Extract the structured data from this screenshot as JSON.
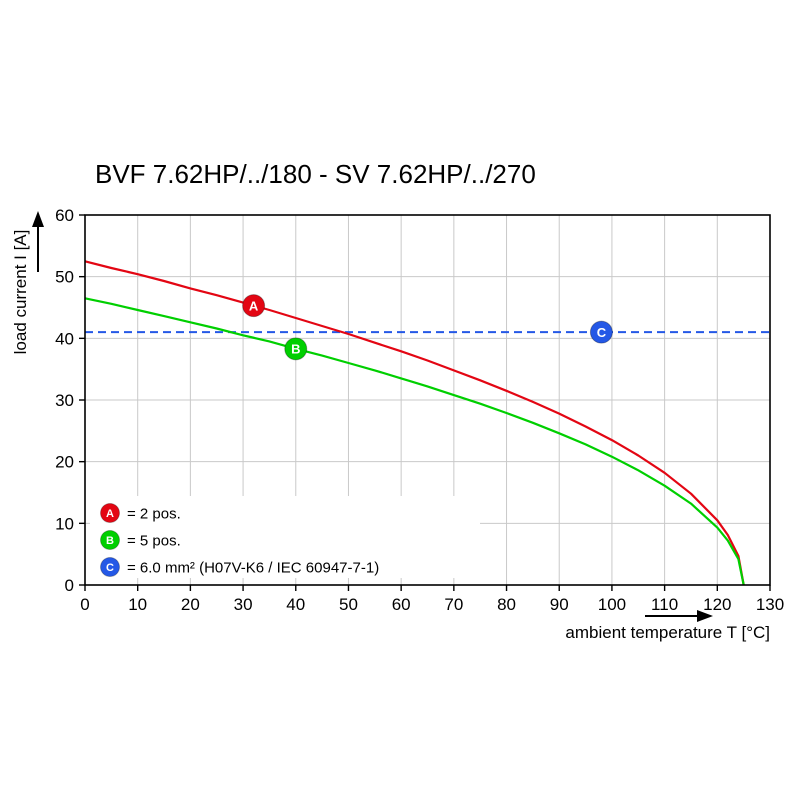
{
  "title": "BVF 7.62HP/../180 - SV 7.62HP/../270",
  "chart_data": {
    "type": "line",
    "title": "BVF 7.62HP/../180 - SV 7.62HP/../270",
    "xlabel": "ambient temperature T [°C]",
    "ylabel": "load current I [A]",
    "xlim": [
      0,
      130
    ],
    "ylim": [
      0,
      60
    ],
    "x_ticks": [
      0,
      10,
      20,
      30,
      40,
      50,
      60,
      70,
      80,
      90,
      100,
      110,
      120,
      130
    ],
    "y_ticks": [
      0,
      10,
      20,
      30,
      40,
      50,
      60
    ],
    "grid": true,
    "series": [
      {
        "name": "A",
        "label": "= 2 pos.",
        "color": "#e30613",
        "points": [
          [
            0,
            52.5
          ],
          [
            5,
            51.4
          ],
          [
            10,
            50.4
          ],
          [
            15,
            49.3
          ],
          [
            20,
            48.1
          ],
          [
            25,
            47.0
          ],
          [
            30,
            45.8
          ],
          [
            35,
            44.6
          ],
          [
            40,
            43.3
          ],
          [
            45,
            42.0
          ],
          [
            50,
            40.7
          ],
          [
            55,
            39.3
          ],
          [
            60,
            37.9
          ],
          [
            65,
            36.4
          ],
          [
            70,
            34.8
          ],
          [
            75,
            33.2
          ],
          [
            80,
            31.5
          ],
          [
            85,
            29.7
          ],
          [
            90,
            27.8
          ],
          [
            95,
            25.7
          ],
          [
            100,
            23.5
          ],
          [
            105,
            21.0
          ],
          [
            110,
            18.2
          ],
          [
            115,
            14.8
          ],
          [
            120,
            10.5
          ],
          [
            122,
            8.1
          ],
          [
            124,
            4.7
          ],
          [
            125,
            0
          ]
        ]
      },
      {
        "name": "B",
        "label": "= 5 pos.",
        "color": "#00cf00",
        "points": [
          [
            0,
            46.5
          ],
          [
            5,
            45.6
          ],
          [
            10,
            44.6
          ],
          [
            15,
            43.6
          ],
          [
            20,
            42.6
          ],
          [
            25,
            41.6
          ],
          [
            30,
            40.5
          ],
          [
            35,
            39.5
          ],
          [
            40,
            38.3
          ],
          [
            45,
            37.2
          ],
          [
            50,
            36.0
          ],
          [
            55,
            34.8
          ],
          [
            60,
            33.5
          ],
          [
            65,
            32.2
          ],
          [
            70,
            30.8
          ],
          [
            75,
            29.4
          ],
          [
            80,
            27.9
          ],
          [
            85,
            26.3
          ],
          [
            90,
            24.6
          ],
          [
            95,
            22.8
          ],
          [
            100,
            20.8
          ],
          [
            105,
            18.6
          ],
          [
            110,
            16.1
          ],
          [
            115,
            13.2
          ],
          [
            120,
            9.3
          ],
          [
            122,
            7.2
          ],
          [
            124,
            4.2
          ],
          [
            125,
            0
          ]
        ]
      }
    ],
    "reference_line": {
      "name": "C",
      "label": "= 6.0 mm² (H07V-K6 / IEC 60947-7-1)",
      "color": "#2458e6",
      "value": 41,
      "style": "dashed"
    },
    "markers": [
      {
        "label": "A",
        "x": 32,
        "y": 45.3,
        "color": "#e30613"
      },
      {
        "label": "B",
        "x": 40,
        "y": 38.3,
        "color": "#00cf00"
      },
      {
        "label": "C",
        "x": 98,
        "y": 41.0,
        "color": "#2458e6"
      }
    ],
    "legend": {
      "position": "bottom-left",
      "items": [
        {
          "symbol": "A",
          "color": "#e30613",
          "text": "= 2 pos."
        },
        {
          "symbol": "B",
          "color": "#00cf00",
          "text": "= 5 pos."
        },
        {
          "symbol": "C",
          "color": "#2458e6",
          "text": "= 6.0 mm² (H07V-K6 / IEC 60947-7-1)"
        }
      ]
    }
  }
}
